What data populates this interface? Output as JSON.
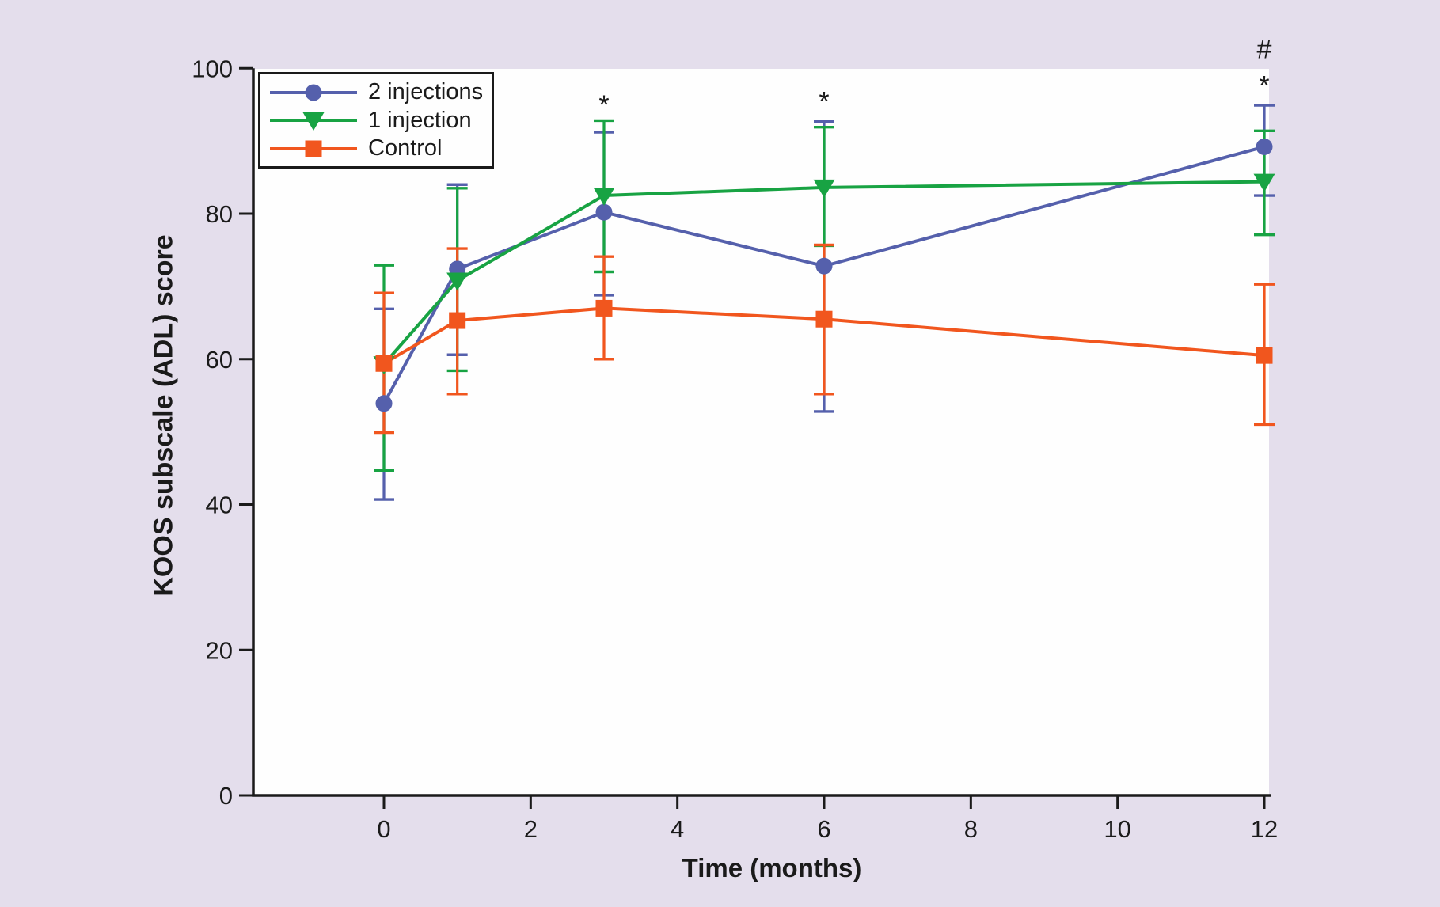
{
  "figure": {
    "background_color": "#e4deec",
    "plot_background_color": "#fefefe",
    "axis_color": "#1a1a1a"
  },
  "chart_data": {
    "type": "line",
    "x": [
      0,
      1,
      3,
      6,
      12
    ],
    "series": [
      {
        "name": "2 injections",
        "color": "#5560ac",
        "marker": "circle",
        "values": [
          53.9,
          72.4,
          80.2,
          72.8,
          89.2
        ],
        "err_low": [
          40.7,
          60.6,
          68.8,
          52.8,
          82.5
        ],
        "err_high": [
          66.9,
          84.0,
          91.2,
          92.7,
          94.9
        ]
      },
      {
        "name": "1 injection",
        "color": "#18a343",
        "marker": "triangle-down",
        "values": [
          59.3,
          70.8,
          82.5,
          83.6,
          84.4
        ],
        "err_low": [
          44.7,
          58.4,
          72.0,
          75.6,
          77.1
        ],
        "err_high": [
          72.9,
          83.5,
          92.8,
          91.9,
          91.4
        ]
      },
      {
        "name": "Control",
        "color": "#f1561e",
        "marker": "square",
        "values": [
          59.4,
          65.3,
          67.0,
          65.5,
          60.5
        ],
        "err_low": [
          49.9,
          55.2,
          60.0,
          55.2,
          51.0
        ],
        "err_high": [
          69.1,
          75.2,
          74.1,
          75.7,
          70.3
        ]
      }
    ],
    "title": "",
    "xlabel": "Time (months)",
    "ylabel": "KOOS subscale (ADL) score",
    "xticks": [
      0,
      2,
      4,
      6,
      8,
      10,
      12
    ],
    "yticks": [
      0,
      20,
      40,
      60,
      80,
      100
    ],
    "xlim": [
      -1.8,
      12.1
    ],
    "ylim": [
      0,
      100
    ],
    "grid": false,
    "legend_position": "top-left",
    "error_bars": true,
    "annotations": [
      {
        "symbol": "*",
        "x": 3,
        "y": 95.0
      },
      {
        "symbol": "*",
        "x": 6,
        "y": 95.5
      },
      {
        "symbol": "*",
        "x": 12,
        "y": 97.7
      },
      {
        "symbol": "#",
        "x": 12,
        "y": 102.7
      }
    ]
  }
}
